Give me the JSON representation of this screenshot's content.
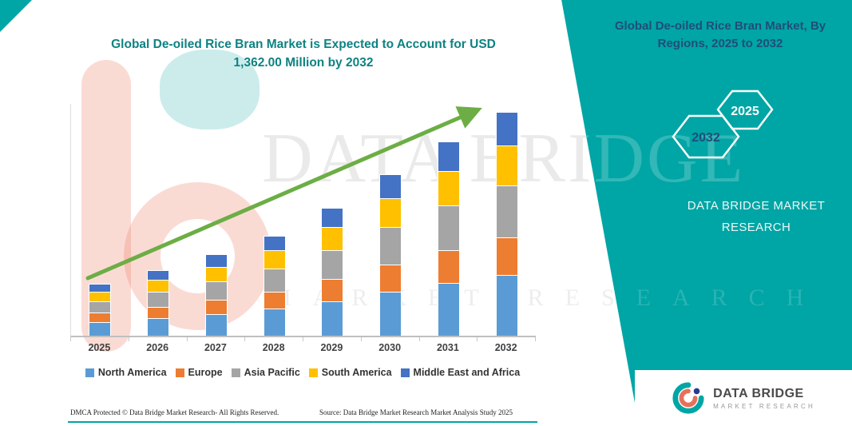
{
  "header": {
    "chart_title_line1": "Global De-oiled Rice Bran Market is Expected to Account for USD",
    "chart_title_line2": "1,362.00 Million by 2032"
  },
  "side_panel": {
    "title_line1": "Global De-oiled Rice Bran Market, By",
    "title_line2": "Regions, 2025 to 2032",
    "hexagons": {
      "back_label": "2032",
      "front_label": "2025"
    },
    "brand_line1": "DATA BRIDGE MARKET",
    "brand_line2": "RESEARCH"
  },
  "watermark": {
    "line1": "DATA BRIDGE",
    "line2": "MARKET RESEARCH"
  },
  "footer": {
    "dmca_text": "DMCA Protected © Data Bridge Market Research-  All Rights Reserved.",
    "source_text": "Source: Data Bridge Market Research  Market Analysis Study 2025"
  },
  "logo_box": {
    "name": "DATA BRIDGE",
    "subtitle": "MARKET RESEARCH"
  },
  "colors": {
    "teal": "#00A5A5",
    "navy": "#1F4E79",
    "title_teal": "#0E8282",
    "arrow_green": "#6CAE45"
  },
  "chart_data": {
    "type": "bar",
    "stacked": true,
    "title": "Global De-oiled Rice Bran Market is Expected to Account for USD 1,362.00 Million by 2032",
    "unit": "USD Million",
    "values_estimated_from_bar_heights": true,
    "total_2032": 1362.0,
    "categories": [
      "2025",
      "2026",
      "2027",
      "2028",
      "2029",
      "2030",
      "2031",
      "2032"
    ],
    "series": [
      {
        "name": "North America",
        "color": "#5B9BD5",
        "values": [
          85,
          108,
          134,
          165,
          211,
          266,
          319,
          368
        ]
      },
      {
        "name": "Europe",
        "color": "#ED7D31",
        "values": [
          54,
          68,
          84,
          104,
          133,
          167,
          201,
          232
        ]
      },
      {
        "name": "Asia Pacific",
        "color": "#A5A5A5",
        "values": [
          72,
          92,
          114,
          140,
          179,
          227,
          271,
          313
        ]
      },
      {
        "name": "South America",
        "color": "#FFC000",
        "values": [
          57,
          72,
          89,
          110,
          140,
          177,
          212,
          245
        ]
      },
      {
        "name": "Middle East and Africa",
        "color": "#4472C4",
        "values": [
          47,
          60,
          74,
          91,
          117,
          148,
          177,
          204
        ]
      }
    ],
    "totals": [
      315,
      400,
      495,
      610,
      780,
      985,
      1180,
      1362
    ],
    "ylim": [
      0,
      1450
    ],
    "grid": false,
    "legend_position": "bottom",
    "annotations": [
      "green upward trend arrow across bars"
    ]
  }
}
